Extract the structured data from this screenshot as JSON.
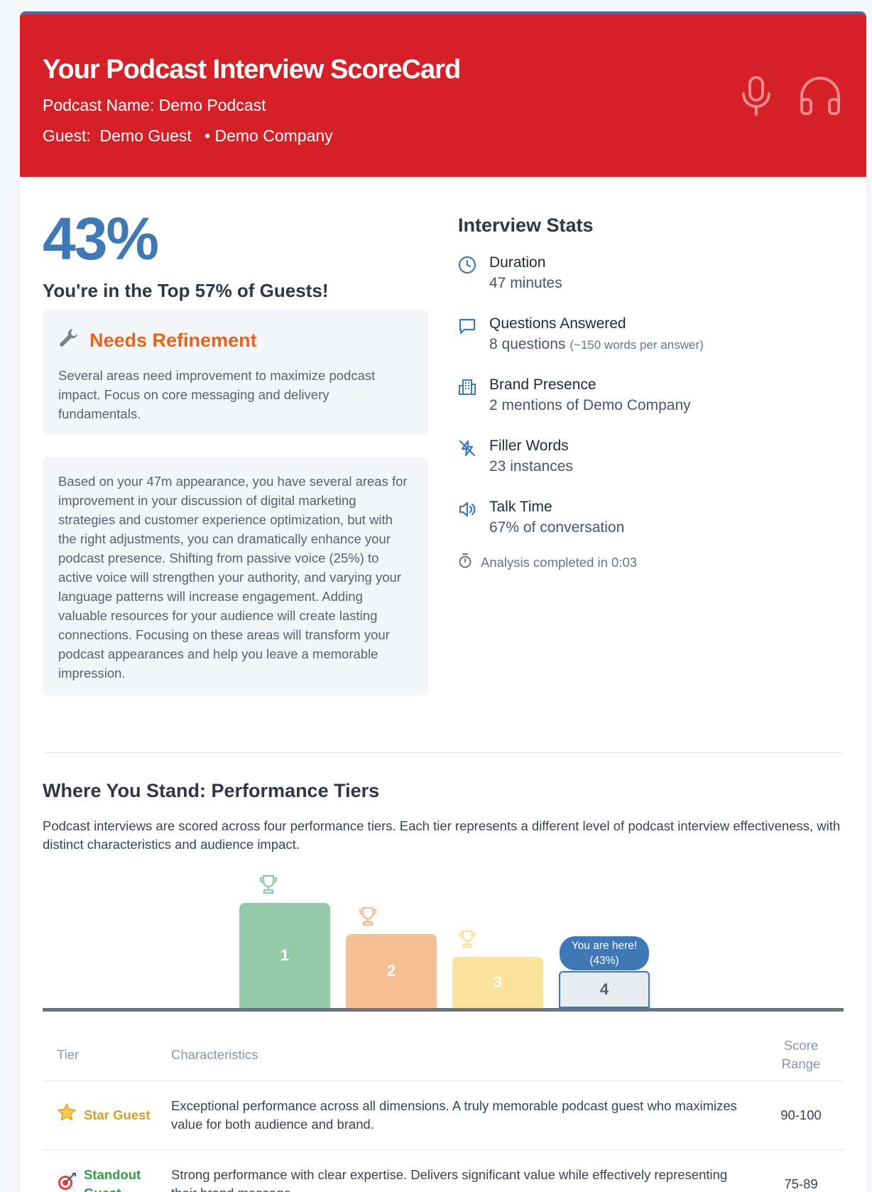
{
  "header": {
    "title": "Your Podcast Interview ScoreCard",
    "podcast_label": "Podcast Name:",
    "podcast_name": "Demo Podcast",
    "guest_label": "Guest:",
    "guest_name": "Demo Guest",
    "company": "Demo Company",
    "icons": [
      "microphone-icon",
      "headphones-icon"
    ]
  },
  "score": {
    "percent": "43%",
    "rank_text": "You're in the Top 57% of Guests!"
  },
  "status": {
    "icon": "wrench-icon",
    "title": "Needs Refinement",
    "description": "Several areas need improvement to maximize podcast impact. Focus on core messaging and delivery fundamentals."
  },
  "summary": "Based on your 47m appearance, you have several areas for improvement in your discussion of digital marketing strategies and customer experience optimization, but with the right adjustments, you can dramatically enhance your podcast presence. Shifting from passive voice (25%) to active voice will strengthen your authority, and varying your language patterns will increase engagement. Adding valuable resources for your audience will create lasting connections. Focusing on these areas will transform your podcast appearances and help you leave a memorable impression.",
  "stats": {
    "title": "Interview Stats",
    "items": [
      {
        "icon": "clock-icon",
        "label": "Duration",
        "value": "47 minutes",
        "note": ""
      },
      {
        "icon": "chat-bubble-icon",
        "label": "Questions Answered",
        "value": "8 questions",
        "note": "(~150 words per answer)"
      },
      {
        "icon": "building-icon",
        "label": "Brand Presence",
        "value": "2 mentions of Demo Company",
        "note": ""
      },
      {
        "icon": "filler-words-icon",
        "label": "Filler Words",
        "value": "23 instances",
        "note": ""
      },
      {
        "icon": "speaker-icon",
        "label": "Talk Time",
        "value": "67% of conversation",
        "note": ""
      }
    ],
    "analysis": "Analysis completed in 0:03"
  },
  "tiers": {
    "title": "Where You Stand: Performance Tiers",
    "description": "Podcast interviews are scored across four performance tiers. Each tier represents a different level of podcast interview effectiveness, with distinct characteristics and audience impact.",
    "podium": [
      {
        "label": "1",
        "color": "#93cbaa",
        "trophy_color": "#93cbaa"
      },
      {
        "label": "2",
        "color": "#f6be93",
        "trophy_color": "#f6be93"
      },
      {
        "label": "3",
        "color": "#fbe29a",
        "trophy_color": "#fbe29a"
      },
      {
        "label": "4",
        "color": "#e8ebef",
        "trophy_color": ""
      }
    ],
    "you_are_here": "You are here!",
    "you_are_here_pct": "(43%)",
    "current_tier": 4,
    "table_headers": {
      "tier": "Tier",
      "characteristics": "Characteristics",
      "score_range": "Score Range"
    },
    "rows": [
      {
        "icon": "star-icon",
        "name": "Star Guest",
        "color": "#d69e2e",
        "characteristics": "Exceptional performance across all dimensions. A truly memorable podcast guest who maximizes value for both audience and brand.",
        "range": "90-100"
      },
      {
        "icon": "target-icon",
        "name": "Standout Guest",
        "color": "#2f9e44",
        "characteristics": "Strong performance with clear expertise. Delivers significant value while effectively representing their brand message.",
        "range": "75-89"
      }
    ]
  }
}
